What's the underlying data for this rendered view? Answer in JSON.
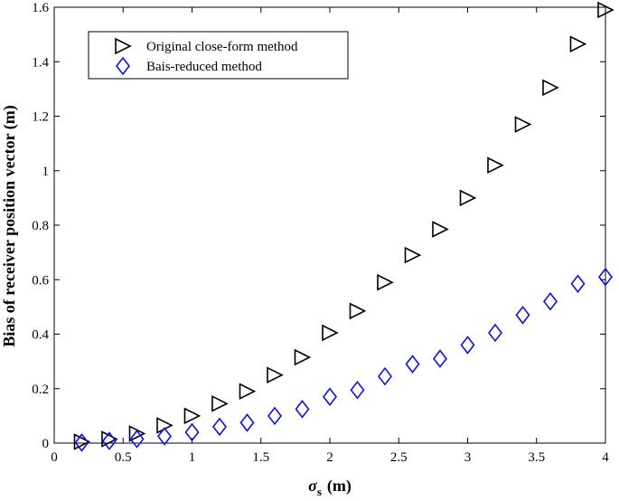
{
  "chart_data": {
    "type": "scatter",
    "xlabel_symbol": "σ",
    "xlabel_sub": "s",
    "xlabel_unit": "(m)",
    "ylabel": "Bias of receiver position vector (m)",
    "xlim": [
      0,
      4
    ],
    "ylim": [
      0,
      1.6
    ],
    "xticks": [
      "0",
      "0.5",
      "1",
      "1.5",
      "2",
      "2.5",
      "3",
      "3.5",
      "4"
    ],
    "yticks": [
      "0",
      "0.2",
      "0.4",
      "0.6",
      "0.8",
      "1",
      "1.2",
      "1.4",
      "1.6"
    ],
    "grid": false,
    "legend_position": "top-left",
    "series": [
      {
        "name": "Original close-form method",
        "marker": "triangle-right",
        "color": "#000000",
        "x": [
          0.2,
          0.4,
          0.6,
          0.8,
          1.0,
          1.2,
          1.4,
          1.6,
          1.8,
          2.0,
          2.2,
          2.4,
          2.6,
          2.8,
          3.0,
          3.2,
          3.4,
          3.6,
          3.8,
          4.0
        ],
        "y": [
          0.005,
          0.015,
          0.035,
          0.065,
          0.1,
          0.145,
          0.19,
          0.25,
          0.315,
          0.405,
          0.485,
          0.59,
          0.69,
          0.785,
          0.9,
          1.02,
          1.17,
          1.305,
          1.465,
          1.59
        ]
      },
      {
        "name": "Bais-reduced method",
        "marker": "diamond",
        "color": "#1010e0",
        "x": [
          0.2,
          0.4,
          0.6,
          0.8,
          1.0,
          1.2,
          1.4,
          1.6,
          1.8,
          2.0,
          2.2,
          2.4,
          2.6,
          2.8,
          3.0,
          3.2,
          3.4,
          3.6,
          3.8,
          4.0
        ],
        "y": [
          0.002,
          0.008,
          0.015,
          0.025,
          0.04,
          0.06,
          0.075,
          0.1,
          0.125,
          0.17,
          0.195,
          0.245,
          0.29,
          0.31,
          0.36,
          0.405,
          0.47,
          0.52,
          0.585,
          0.61
        ]
      }
    ]
  }
}
